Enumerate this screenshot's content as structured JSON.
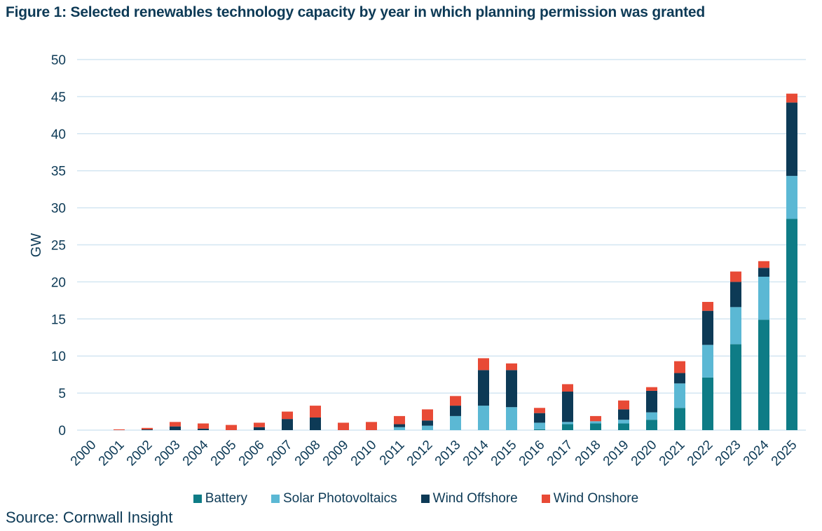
{
  "chart_data": {
    "type": "bar",
    "stacked": true,
    "title": "Figure 1: Selected renewables technology capacity by year in which planning permission was granted",
    "xlabel": "",
    "ylabel": "GW",
    "ylim": [
      0,
      50
    ],
    "yticks": [
      0,
      5,
      10,
      15,
      20,
      25,
      30,
      35,
      40,
      45,
      50
    ],
    "grid": true,
    "legend_position": "bottom",
    "categories": [
      "2000",
      "2001",
      "2002",
      "2003",
      "2004",
      "2005",
      "2006",
      "2007",
      "2008",
      "2009",
      "2010",
      "2011",
      "2012",
      "2013",
      "2014",
      "2015",
      "2016",
      "2017",
      "2018",
      "2019",
      "2020",
      "2021",
      "2022",
      "2023",
      "2024",
      "2025"
    ],
    "series": [
      {
        "name": "Battery",
        "color": "#0e7c86",
        "values": [
          0,
          0,
          0,
          0,
          0,
          0,
          0,
          0,
          0,
          0,
          0,
          0,
          0,
          0,
          0,
          0,
          0.1,
          0.8,
          0.9,
          0.9,
          1.4,
          3.0,
          7.1,
          11.6,
          14.9,
          28.5
        ]
      },
      {
        "name": "Solar Photovoltaics",
        "color": "#5bb8d4",
        "values": [
          0,
          0,
          0,
          0,
          0,
          0,
          0,
          0,
          0,
          0,
          0,
          0.4,
          0.6,
          1.9,
          3.3,
          3.1,
          0.9,
          0.3,
          0.3,
          0.5,
          1.0,
          3.3,
          4.4,
          5.0,
          5.8,
          5.8
        ]
      },
      {
        "name": "Wind Offshore",
        "color": "#0d3a56",
        "values": [
          0,
          0,
          0.1,
          0.5,
          0.2,
          0,
          0.4,
          1.5,
          1.7,
          0,
          0,
          0.4,
          0.7,
          1.4,
          4.8,
          5.0,
          1.3,
          4.1,
          0,
          1.4,
          2.9,
          1.4,
          4.6,
          3.4,
          1.2,
          9.9
        ]
      },
      {
        "name": "Wind Onshore",
        "color": "#e84a36",
        "values": [
          0,
          0.1,
          0.2,
          0.6,
          0.7,
          0.7,
          0.6,
          1.0,
          1.6,
          1.0,
          1.1,
          1.1,
          1.5,
          1.3,
          1.6,
          0.9,
          0.7,
          1.0,
          0.7,
          1.2,
          0.5,
          1.6,
          1.2,
          1.4,
          0.9,
          1.2
        ]
      }
    ]
  },
  "source": "Source: Cornwall Insight"
}
